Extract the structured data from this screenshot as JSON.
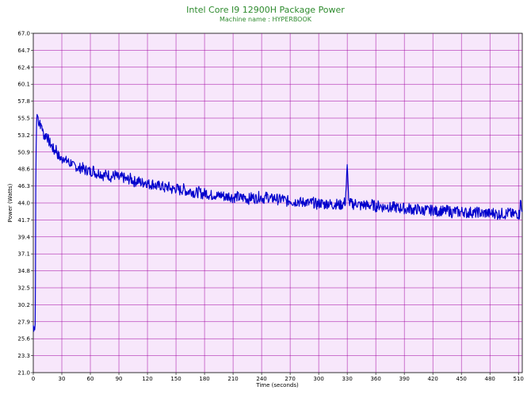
{
  "chart_data": {
    "type": "line",
    "title": "Intel Core I9 12900H Package Power",
    "subtitle": "Machine name : HYPERBOOK",
    "xlabel": "Time (seconds)",
    "ylabel": "Power (Watts)",
    "xlim": [
      0,
      514
    ],
    "ylim": [
      21.0,
      67.0
    ],
    "x_ticks": [
      0,
      30,
      60,
      90,
      120,
      150,
      180,
      210,
      240,
      270,
      300,
      330,
      360,
      390,
      420,
      450,
      480,
      510
    ],
    "y_ticks": [
      "21.0",
      "23.3",
      "25.6",
      "27.9",
      "30.2",
      "32.5",
      "34.8",
      "37.1",
      "39.4",
      "41.7",
      "44.0",
      "46.3",
      "48.6",
      "50.9",
      "53.2",
      "55.5",
      "57.8",
      "60.1",
      "62.4",
      "64.7",
      "67.0"
    ],
    "grid": true,
    "series": [
      {
        "color": "#0000cc",
        "points": [
          [
            0,
            27.4
          ],
          [
            0.5,
            26.6
          ],
          [
            1,
            27.2
          ],
          [
            1.5,
            26.8
          ],
          [
            2,
            27.6
          ],
          [
            2.3,
            34.0
          ],
          [
            2.6,
            46.0
          ],
          [
            3,
            51.5
          ],
          [
            3.5,
            55.0
          ],
          [
            4,
            56.0
          ],
          [
            5,
            55.6
          ],
          [
            6,
            54.8
          ],
          [
            7,
            55.2
          ],
          [
            8,
            54.2
          ],
          [
            9,
            54.6
          ],
          [
            10,
            53.6
          ],
          [
            12,
            53.0
          ],
          [
            14,
            53.4
          ],
          [
            16,
            52.4
          ],
          [
            18,
            52.0
          ],
          [
            20,
            51.6
          ],
          [
            22,
            51.0
          ],
          [
            24,
            51.4
          ],
          [
            26,
            50.4
          ],
          [
            28,
            50.2
          ],
          [
            30,
            49.8
          ],
          [
            32,
            50.4
          ],
          [
            34,
            49.6
          ],
          [
            36,
            49.8
          ],
          [
            38,
            49.2
          ],
          [
            40,
            49.6
          ],
          [
            42,
            48.9
          ],
          [
            45,
            49.0
          ],
          [
            48,
            48.6
          ],
          [
            51,
            48.9
          ],
          [
            54,
            48.4
          ],
          [
            57,
            48.5
          ],
          [
            60,
            48.2
          ],
          [
            63,
            48.5
          ],
          [
            66,
            48.0
          ],
          [
            70,
            48.1
          ],
          [
            74,
            47.7
          ],
          [
            78,
            47.9
          ],
          [
            82,
            47.5
          ],
          [
            86,
            47.8
          ],
          [
            90,
            47.3
          ],
          [
            94,
            47.5
          ],
          [
            98,
            47.1
          ],
          [
            102,
            47.3
          ],
          [
            106,
            46.9
          ],
          [
            110,
            47.0
          ],
          [
            114,
            46.7
          ],
          [
            118,
            46.9
          ],
          [
            122,
            46.5
          ],
          [
            126,
            46.6
          ],
          [
            130,
            46.2
          ],
          [
            134,
            46.4
          ],
          [
            138,
            46.0
          ],
          [
            142,
            46.2
          ],
          [
            146,
            45.8
          ],
          [
            150,
            46.0
          ],
          [
            154,
            45.7
          ],
          [
            158,
            45.9
          ],
          [
            162,
            45.5
          ],
          [
            166,
            45.7
          ],
          [
            170,
            45.3
          ],
          [
            174,
            45.5
          ],
          [
            178,
            45.2
          ],
          [
            182,
            45.4
          ],
          [
            186,
            45.0
          ],
          [
            190,
            45.2
          ],
          [
            194,
            44.9
          ],
          [
            198,
            45.1
          ],
          [
            202,
            44.8
          ],
          [
            206,
            45.0
          ],
          [
            210,
            44.7
          ],
          [
            214,
            44.9
          ],
          [
            218,
            44.6
          ],
          [
            222,
            44.8
          ],
          [
            226,
            44.5
          ],
          [
            230,
            44.8
          ],
          [
            234,
            44.6
          ],
          [
            238,
            44.9
          ],
          [
            242,
            44.6
          ],
          [
            246,
            44.9
          ],
          [
            250,
            44.5
          ],
          [
            254,
            44.7
          ],
          [
            258,
            44.4
          ],
          [
            262,
            44.6
          ],
          [
            266,
            44.2
          ],
          [
            270,
            44.4
          ],
          [
            274,
            44.1
          ],
          [
            278,
            44.3
          ],
          [
            282,
            44.0
          ],
          [
            286,
            44.2
          ],
          [
            290,
            43.9
          ],
          [
            294,
            44.1
          ],
          [
            298,
            43.8
          ],
          [
            302,
            44.0
          ],
          [
            306,
            43.8
          ],
          [
            310,
            44.0
          ],
          [
            314,
            43.7
          ],
          [
            318,
            43.9
          ],
          [
            322,
            43.7
          ],
          [
            326,
            43.9
          ],
          [
            328,
            44.2
          ],
          [
            329,
            46.5
          ],
          [
            330,
            48.8
          ],
          [
            331,
            46.0
          ],
          [
            332,
            44.0
          ],
          [
            336,
            43.8
          ],
          [
            340,
            44.0
          ],
          [
            344,
            43.6
          ],
          [
            348,
            43.8
          ],
          [
            352,
            43.6
          ],
          [
            356,
            43.8
          ],
          [
            360,
            43.5
          ],
          [
            364,
            43.7
          ],
          [
            368,
            43.4
          ],
          [
            372,
            43.6
          ],
          [
            376,
            43.3
          ],
          [
            380,
            43.5
          ],
          [
            384,
            43.2
          ],
          [
            388,
            43.4
          ],
          [
            392,
            43.1
          ],
          [
            396,
            43.3
          ],
          [
            400,
            43.0
          ],
          [
            404,
            43.2
          ],
          [
            408,
            42.9
          ],
          [
            412,
            43.1
          ],
          [
            416,
            42.9
          ],
          [
            420,
            43.1
          ],
          [
            424,
            42.8
          ],
          [
            428,
            43.0
          ],
          [
            432,
            42.8
          ],
          [
            436,
            43.0
          ],
          [
            440,
            42.7
          ],
          [
            444,
            42.9
          ],
          [
            448,
            42.7
          ],
          [
            452,
            42.9
          ],
          [
            456,
            42.6
          ],
          [
            460,
            42.8
          ],
          [
            464,
            42.6
          ],
          [
            468,
            42.8
          ],
          [
            472,
            42.5
          ],
          [
            476,
            42.7
          ],
          [
            480,
            42.5
          ],
          [
            484,
            42.7
          ],
          [
            488,
            42.4
          ],
          [
            492,
            42.6
          ],
          [
            496,
            42.5
          ],
          [
            500,
            42.7
          ],
          [
            504,
            42.4
          ],
          [
            508,
            42.6
          ],
          [
            511,
            42.4
          ],
          [
            512,
            44.8
          ],
          [
            513,
            43.0
          ],
          [
            514,
            42.8
          ]
        ]
      }
    ]
  }
}
